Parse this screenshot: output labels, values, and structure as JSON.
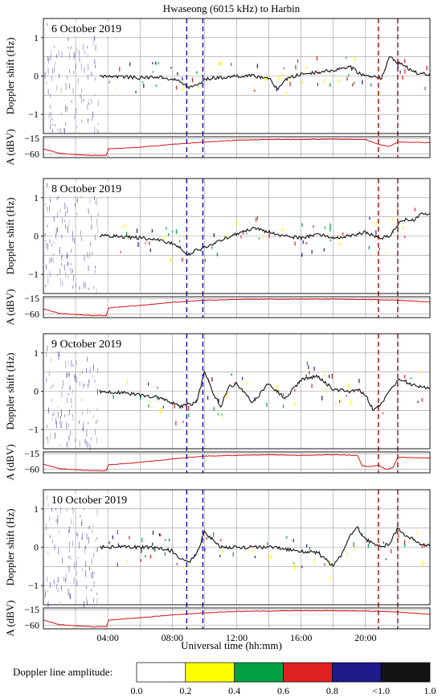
{
  "chart_data": {
    "type": "line",
    "title": "Hwaseong (6015 kHz) to Harbin",
    "xlabel": "Universal time (hh:mm)",
    "x_ticks": [
      "04:00",
      "08:00",
      "12:00",
      "16:00",
      "20:00"
    ],
    "xlim_hours": [
      0,
      24
    ],
    "doppler_ylabel": "Doppler shift (Hz)",
    "doppler_yticks": [
      "1",
      "0",
      "−1"
    ],
    "doppler_ylim": [
      -1.5,
      1.5
    ],
    "amp_ylabel": "A (dBV)",
    "amp_yticks": [
      "−15",
      "−60"
    ],
    "amp_ylim": [
      -70,
      -10
    ],
    "marker_colors": {
      "blue": "#1a1aa6",
      "red": "#a01818"
    },
    "colorbar": {
      "title": "Doppler line amplitude:",
      "tick_labels": [
        "0.0",
        "0.2",
        "0.4",
        "0.6",
        "0.8",
        "<1.0",
        "1.0"
      ],
      "colors": [
        "#ffffff",
        "#ffff00",
        "#00a040",
        "#e02020",
        "#1e1a8c",
        "#141414"
      ]
    },
    "panels": [
      {
        "date": "6 October 2019",
        "blue_lines_ut": [
          8.9,
          9.9
        ],
        "red_lines_ut": [
          20.8,
          22.0
        ],
        "doppler": {
          "times": [
            3.5,
            4,
            5,
            6,
            7,
            8,
            8.5,
            9,
            9.5,
            10,
            10.5,
            11,
            12,
            13,
            14,
            14.5,
            15,
            16,
            17,
            18,
            19,
            19.5,
            20,
            20.5,
            21,
            21.5,
            22,
            22.5,
            23,
            23.5,
            24
          ],
          "values": [
            0.0,
            0.0,
            -0.02,
            -0.05,
            -0.02,
            -0.08,
            -0.15,
            -0.3,
            -0.25,
            -0.1,
            -0.05,
            -0.05,
            0.0,
            0.0,
            -0.05,
            -0.35,
            -0.1,
            0.05,
            0.1,
            0.15,
            0.25,
            0.1,
            0.0,
            0.0,
            -0.05,
            0.5,
            0.35,
            0.25,
            0.1,
            0.05,
            0.05
          ]
        },
        "amplitude": {
          "times": [
            0,
            1,
            3,
            3.95,
            4,
            6,
            8,
            10,
            12,
            14,
            16,
            18,
            20,
            20.8,
            21.5,
            22,
            23,
            24
          ],
          "values": [
            -45,
            -58,
            -64,
            -64,
            -45,
            -40,
            -32,
            -25,
            -20,
            -18,
            -18,
            -17,
            -18,
            -32,
            -38,
            -25,
            -26,
            -27
          ]
        }
      },
      {
        "date": "8 October 2019",
        "blue_lines_ut": [
          8.9,
          9.9
        ],
        "red_lines_ut": [
          20.8,
          22.0
        ],
        "doppler": {
          "times": [
            3.5,
            4,
            5,
            6,
            7,
            8,
            8.5,
            9,
            9.5,
            10,
            10.5,
            11,
            12,
            13,
            14,
            15,
            16,
            17,
            18,
            19,
            20,
            20.5,
            21,
            21.5,
            22,
            22.5,
            23,
            23.5,
            24
          ],
          "values": [
            0.0,
            0.0,
            -0.02,
            -0.05,
            -0.1,
            -0.2,
            -0.3,
            -0.5,
            -0.35,
            -0.3,
            -0.25,
            -0.1,
            0.05,
            0.2,
            0.1,
            0.0,
            -0.05,
            0.05,
            -0.05,
            0.0,
            0.1,
            0.0,
            -0.05,
            0.0,
            0.3,
            0.45,
            0.4,
            0.6,
            0.55
          ]
        },
        "amplitude": {
          "times": [
            0,
            1,
            3,
            3.95,
            4,
            6,
            8,
            10,
            12,
            14,
            16,
            18,
            20,
            22,
            24
          ],
          "values": [
            -45,
            -58,
            -64,
            -64,
            -42,
            -35,
            -26,
            -20,
            -18,
            -17,
            -17,
            -17,
            -18,
            -20,
            -25
          ]
        }
      },
      {
        "date": "9 October 2019",
        "blue_lines_ut": [
          8.9,
          9.9
        ],
        "red_lines_ut": [
          20.8,
          22.0
        ],
        "doppler": {
          "times": [
            3.5,
            4,
            5,
            6,
            7,
            8,
            8.5,
            9,
            9.5,
            10,
            10.5,
            11,
            11.5,
            12,
            13,
            14,
            15,
            16,
            17,
            18,
            19,
            19.5,
            20,
            20.5,
            21,
            21.5,
            22,
            22.5,
            23,
            23.5,
            24
          ],
          "values": [
            0.0,
            0.0,
            -0.05,
            -0.1,
            -0.15,
            -0.3,
            -0.4,
            -0.35,
            -0.3,
            0.5,
            0.0,
            -0.4,
            0.1,
            0.2,
            -0.3,
            0.2,
            -0.2,
            0.3,
            0.4,
            0.05,
            0.0,
            0.05,
            -0.1,
            -0.5,
            -0.3,
            0.0,
            0.3,
            0.25,
            0.15,
            0.1,
            0.1
          ]
        },
        "amplitude": {
          "times": [
            0,
            1,
            3,
            3.95,
            4,
            6,
            8,
            10,
            12,
            14,
            16,
            18,
            19.5,
            19.8,
            20.3,
            20.8,
            21.3,
            21.7,
            22,
            24
          ],
          "values": [
            -45,
            -58,
            -64,
            -64,
            -47,
            -40,
            -30,
            -22,
            -20,
            -18,
            -20,
            -18,
            -20,
            -50,
            -52,
            -48,
            -60,
            -55,
            -25,
            -28
          ]
        }
      },
      {
        "date": "10 October 2019",
        "blue_lines_ut": [
          8.9,
          9.9
        ],
        "red_lines_ut": [
          20.8,
          22.0
        ],
        "doppler": {
          "times": [
            3.5,
            4,
            5,
            6,
            7,
            8,
            8.5,
            9,
            9.5,
            10,
            10.5,
            11,
            12,
            13,
            14,
            15,
            16,
            17,
            17.5,
            18,
            18.5,
            19,
            19.5,
            20,
            21,
            21.5,
            22,
            22.5,
            23,
            23.5,
            24
          ],
          "values": [
            0.0,
            0.0,
            0.0,
            0.0,
            0.0,
            -0.1,
            -0.3,
            -0.4,
            -0.2,
            0.4,
            0.2,
            0.0,
            0.0,
            0.0,
            0.0,
            -0.05,
            -0.1,
            -0.15,
            -0.3,
            -0.5,
            -0.2,
            0.3,
            0.5,
            0.2,
            0.0,
            0.1,
            0.5,
            0.3,
            0.2,
            0.05,
            0.05
          ]
        },
        "amplitude": {
          "times": [
            0,
            1,
            3,
            3.95,
            4,
            6,
            8,
            10,
            12,
            14,
            16,
            18,
            20,
            22,
            24
          ],
          "values": [
            -45,
            -58,
            -64,
            -64,
            -45,
            -38,
            -30,
            -24,
            -20,
            -19,
            -18,
            -18,
            -19,
            -22,
            -28
          ]
        }
      }
    ]
  }
}
